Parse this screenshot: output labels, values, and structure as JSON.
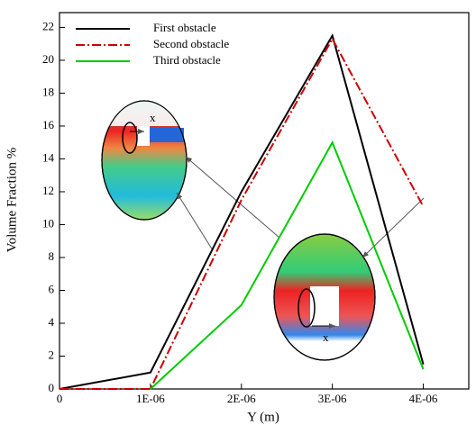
{
  "chart_data": {
    "type": "line",
    "x_label": "Y (m)",
    "y_label": "Volume Fraction %",
    "x": [
      0,
      1e-06,
      2e-06,
      3e-06,
      4e-06
    ],
    "series": [
      {
        "name": "First obstacle",
        "color": "#000000",
        "dash": "solid",
        "values": [
          0,
          1,
          12,
          21.5,
          1.5
        ]
      },
      {
        "name": "Second obstacle",
        "color": "#cc0000",
        "dash": "dashdot",
        "values": [
          0,
          0,
          11.5,
          21.3,
          11.1
        ]
      },
      {
        "name": "Third obstacle",
        "color": "#00cc00",
        "dash": "solid",
        "values": [
          null,
          0,
          5.1,
          15,
          1.2
        ]
      }
    ],
    "xlim": [
      0,
      4.5e-06
    ],
    "xticks": [
      0,
      {
        "value": 1e-06,
        "label": "1E-06"
      },
      {
        "value": 2e-06,
        "label": "2E-06"
      },
      {
        "value": 3e-06,
        "label": "3E-06"
      },
      {
        "value": 4e-06,
        "label": "4E-06"
      }
    ],
    "ylim": [
      0,
      22.9
    ],
    "yticks": [
      0,
      2,
      4,
      6,
      8,
      10,
      12,
      14,
      16,
      18,
      20,
      22
    ],
    "legend": "upper left",
    "annotations": [
      "x",
      "x"
    ]
  }
}
